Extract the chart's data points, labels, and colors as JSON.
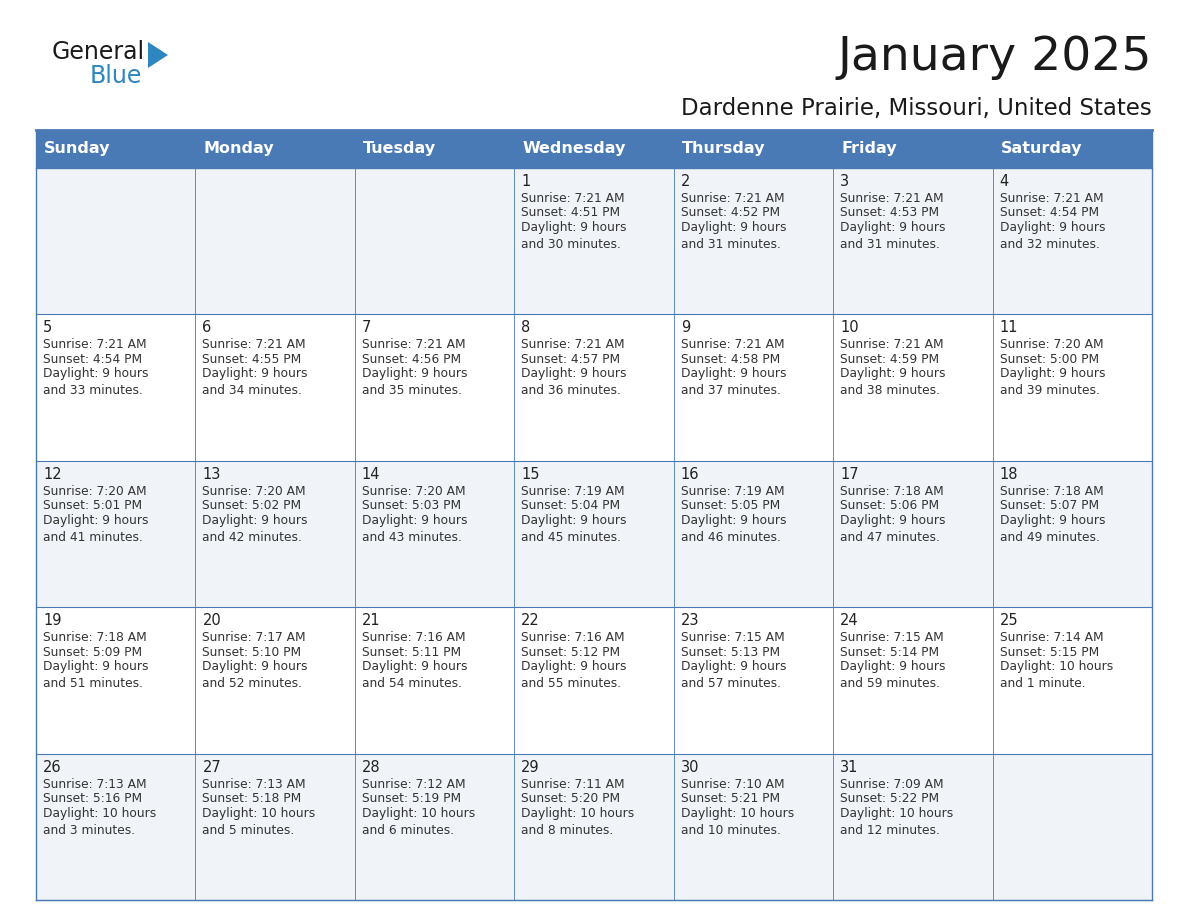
{
  "title": "January 2025",
  "subtitle": "Dardenne Prairie, Missouri, United States",
  "days_of_week": [
    "Sunday",
    "Monday",
    "Tuesday",
    "Wednesday",
    "Thursday",
    "Friday",
    "Saturday"
  ],
  "header_bg": "#4a7ab5",
  "header_text": "#FFFFFF",
  "cell_bg_odd": "#F0F4F8",
  "cell_bg_even": "#FFFFFF",
  "border_color": "#4a7ab5",
  "text_color": "#333333",
  "logo_text_color": "#1a1a1a",
  "logo_blue_color": "#2E86C1",
  "title_color": "#1a1a1a",
  "calendar_data": [
    [
      {
        "day": null,
        "sunrise": null,
        "sunset": null,
        "daylight": null
      },
      {
        "day": null,
        "sunrise": null,
        "sunset": null,
        "daylight": null
      },
      {
        "day": null,
        "sunrise": null,
        "sunset": null,
        "daylight": null
      },
      {
        "day": "1",
        "sunrise": "7:21 AM",
        "sunset": "4:51 PM",
        "daylight": "9 hours\nand 30 minutes."
      },
      {
        "day": "2",
        "sunrise": "7:21 AM",
        "sunset": "4:52 PM",
        "daylight": "9 hours\nand 31 minutes."
      },
      {
        "day": "3",
        "sunrise": "7:21 AM",
        "sunset": "4:53 PM",
        "daylight": "9 hours\nand 31 minutes."
      },
      {
        "day": "4",
        "sunrise": "7:21 AM",
        "sunset": "4:54 PM",
        "daylight": "9 hours\nand 32 minutes."
      }
    ],
    [
      {
        "day": "5",
        "sunrise": "7:21 AM",
        "sunset": "4:54 PM",
        "daylight": "9 hours\nand 33 minutes."
      },
      {
        "day": "6",
        "sunrise": "7:21 AM",
        "sunset": "4:55 PM",
        "daylight": "9 hours\nand 34 minutes."
      },
      {
        "day": "7",
        "sunrise": "7:21 AM",
        "sunset": "4:56 PM",
        "daylight": "9 hours\nand 35 minutes."
      },
      {
        "day": "8",
        "sunrise": "7:21 AM",
        "sunset": "4:57 PM",
        "daylight": "9 hours\nand 36 minutes."
      },
      {
        "day": "9",
        "sunrise": "7:21 AM",
        "sunset": "4:58 PM",
        "daylight": "9 hours\nand 37 minutes."
      },
      {
        "day": "10",
        "sunrise": "7:21 AM",
        "sunset": "4:59 PM",
        "daylight": "9 hours\nand 38 minutes."
      },
      {
        "day": "11",
        "sunrise": "7:20 AM",
        "sunset": "5:00 PM",
        "daylight": "9 hours\nand 39 minutes."
      }
    ],
    [
      {
        "day": "12",
        "sunrise": "7:20 AM",
        "sunset": "5:01 PM",
        "daylight": "9 hours\nand 41 minutes."
      },
      {
        "day": "13",
        "sunrise": "7:20 AM",
        "sunset": "5:02 PM",
        "daylight": "9 hours\nand 42 minutes."
      },
      {
        "day": "14",
        "sunrise": "7:20 AM",
        "sunset": "5:03 PM",
        "daylight": "9 hours\nand 43 minutes."
      },
      {
        "day": "15",
        "sunrise": "7:19 AM",
        "sunset": "5:04 PM",
        "daylight": "9 hours\nand 45 minutes."
      },
      {
        "day": "16",
        "sunrise": "7:19 AM",
        "sunset": "5:05 PM",
        "daylight": "9 hours\nand 46 minutes."
      },
      {
        "day": "17",
        "sunrise": "7:18 AM",
        "sunset": "5:06 PM",
        "daylight": "9 hours\nand 47 minutes."
      },
      {
        "day": "18",
        "sunrise": "7:18 AM",
        "sunset": "5:07 PM",
        "daylight": "9 hours\nand 49 minutes."
      }
    ],
    [
      {
        "day": "19",
        "sunrise": "7:18 AM",
        "sunset": "5:09 PM",
        "daylight": "9 hours\nand 51 minutes."
      },
      {
        "day": "20",
        "sunrise": "7:17 AM",
        "sunset": "5:10 PM",
        "daylight": "9 hours\nand 52 minutes."
      },
      {
        "day": "21",
        "sunrise": "7:16 AM",
        "sunset": "5:11 PM",
        "daylight": "9 hours\nand 54 minutes."
      },
      {
        "day": "22",
        "sunrise": "7:16 AM",
        "sunset": "5:12 PM",
        "daylight": "9 hours\nand 55 minutes."
      },
      {
        "day": "23",
        "sunrise": "7:15 AM",
        "sunset": "5:13 PM",
        "daylight": "9 hours\nand 57 minutes."
      },
      {
        "day": "24",
        "sunrise": "7:15 AM",
        "sunset": "5:14 PM",
        "daylight": "9 hours\nand 59 minutes."
      },
      {
        "day": "25",
        "sunrise": "7:14 AM",
        "sunset": "5:15 PM",
        "daylight": "10 hours\nand 1 minute."
      }
    ],
    [
      {
        "day": "26",
        "sunrise": "7:13 AM",
        "sunset": "5:16 PM",
        "daylight": "10 hours\nand 3 minutes."
      },
      {
        "day": "27",
        "sunrise": "7:13 AM",
        "sunset": "5:18 PM",
        "daylight": "10 hours\nand 5 minutes."
      },
      {
        "day": "28",
        "sunrise": "7:12 AM",
        "sunset": "5:19 PM",
        "daylight": "10 hours\nand 6 minutes."
      },
      {
        "day": "29",
        "sunrise": "7:11 AM",
        "sunset": "5:20 PM",
        "daylight": "10 hours\nand 8 minutes."
      },
      {
        "day": "30",
        "sunrise": "7:10 AM",
        "sunset": "5:21 PM",
        "daylight": "10 hours\nand 10 minutes."
      },
      {
        "day": "31",
        "sunrise": "7:09 AM",
        "sunset": "5:22 PM",
        "daylight": "10 hours\nand 12 minutes."
      },
      {
        "day": null,
        "sunrise": null,
        "sunset": null,
        "daylight": null
      }
    ]
  ]
}
